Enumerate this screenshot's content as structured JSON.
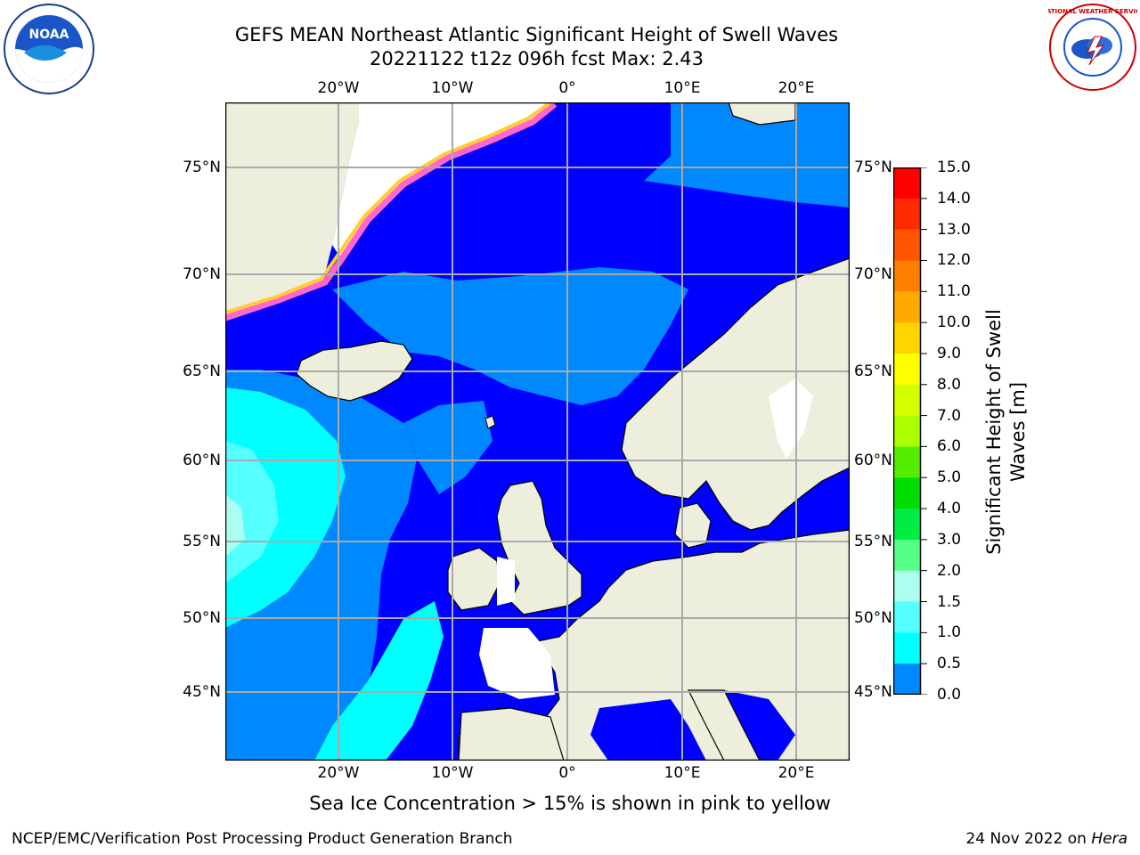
{
  "title_line1": "GEFS MEAN Northeast Atlantic Significant Height of Swell Waves",
  "title_line2": "20221122 t12z 096h fcst   Max: 2.43",
  "lon_ticks": [
    "20°W",
    "10°W",
    "0°",
    "10°E",
    "20°E"
  ],
  "lat_ticks": [
    "75°N",
    "70°N",
    "65°N",
    "60°N",
    "55°N",
    "50°N",
    "45°N"
  ],
  "colorbar": {
    "title_line1": "Significant Height of Swell",
    "title_line2": "Waves [m]",
    "labels": [
      "15.0",
      "14.0",
      "13.0",
      "12.0",
      "11.0",
      "10.0",
      "9.0",
      "8.0",
      "7.0",
      "6.0",
      "5.0",
      "4.0",
      "3.0",
      "2.0",
      "1.5",
      "1.0",
      "0.5",
      "0.0"
    ],
    "colors": [
      "#ff0000",
      "#ff2a00",
      "#ff5500",
      "#ff8000",
      "#ffaa00",
      "#ffd400",
      "#ffff00",
      "#d4ff00",
      "#aaff00",
      "#55ee00",
      "#00dd00",
      "#00ee44",
      "#55ff88",
      "#aaffee",
      "#55ffff",
      "#00ffff",
      "#0088ff",
      "#0000ff"
    ]
  },
  "note": "Sea Ice Concentration > 15% is shown in pink to yellow",
  "footer_left": "NCEP/EMC/Verification Post Processing Product Generation Branch",
  "footer_right_date": "24 Nov 2022 on",
  "footer_right_host": "Hera",
  "logo_left": {
    "icon": "noaa-logo-icon",
    "text": "NOAA"
  },
  "logo_right": {
    "icon": "nws-logo-icon",
    "text": "NATIONAL WEATHER SERVICE"
  },
  "colors": {
    "ocean_dark": "#0000ff",
    "ocean_mid": "#0088ff",
    "ocean_light": "#00ffff",
    "land": "#eeeedd",
    "grid": "#aaaaaa"
  }
}
